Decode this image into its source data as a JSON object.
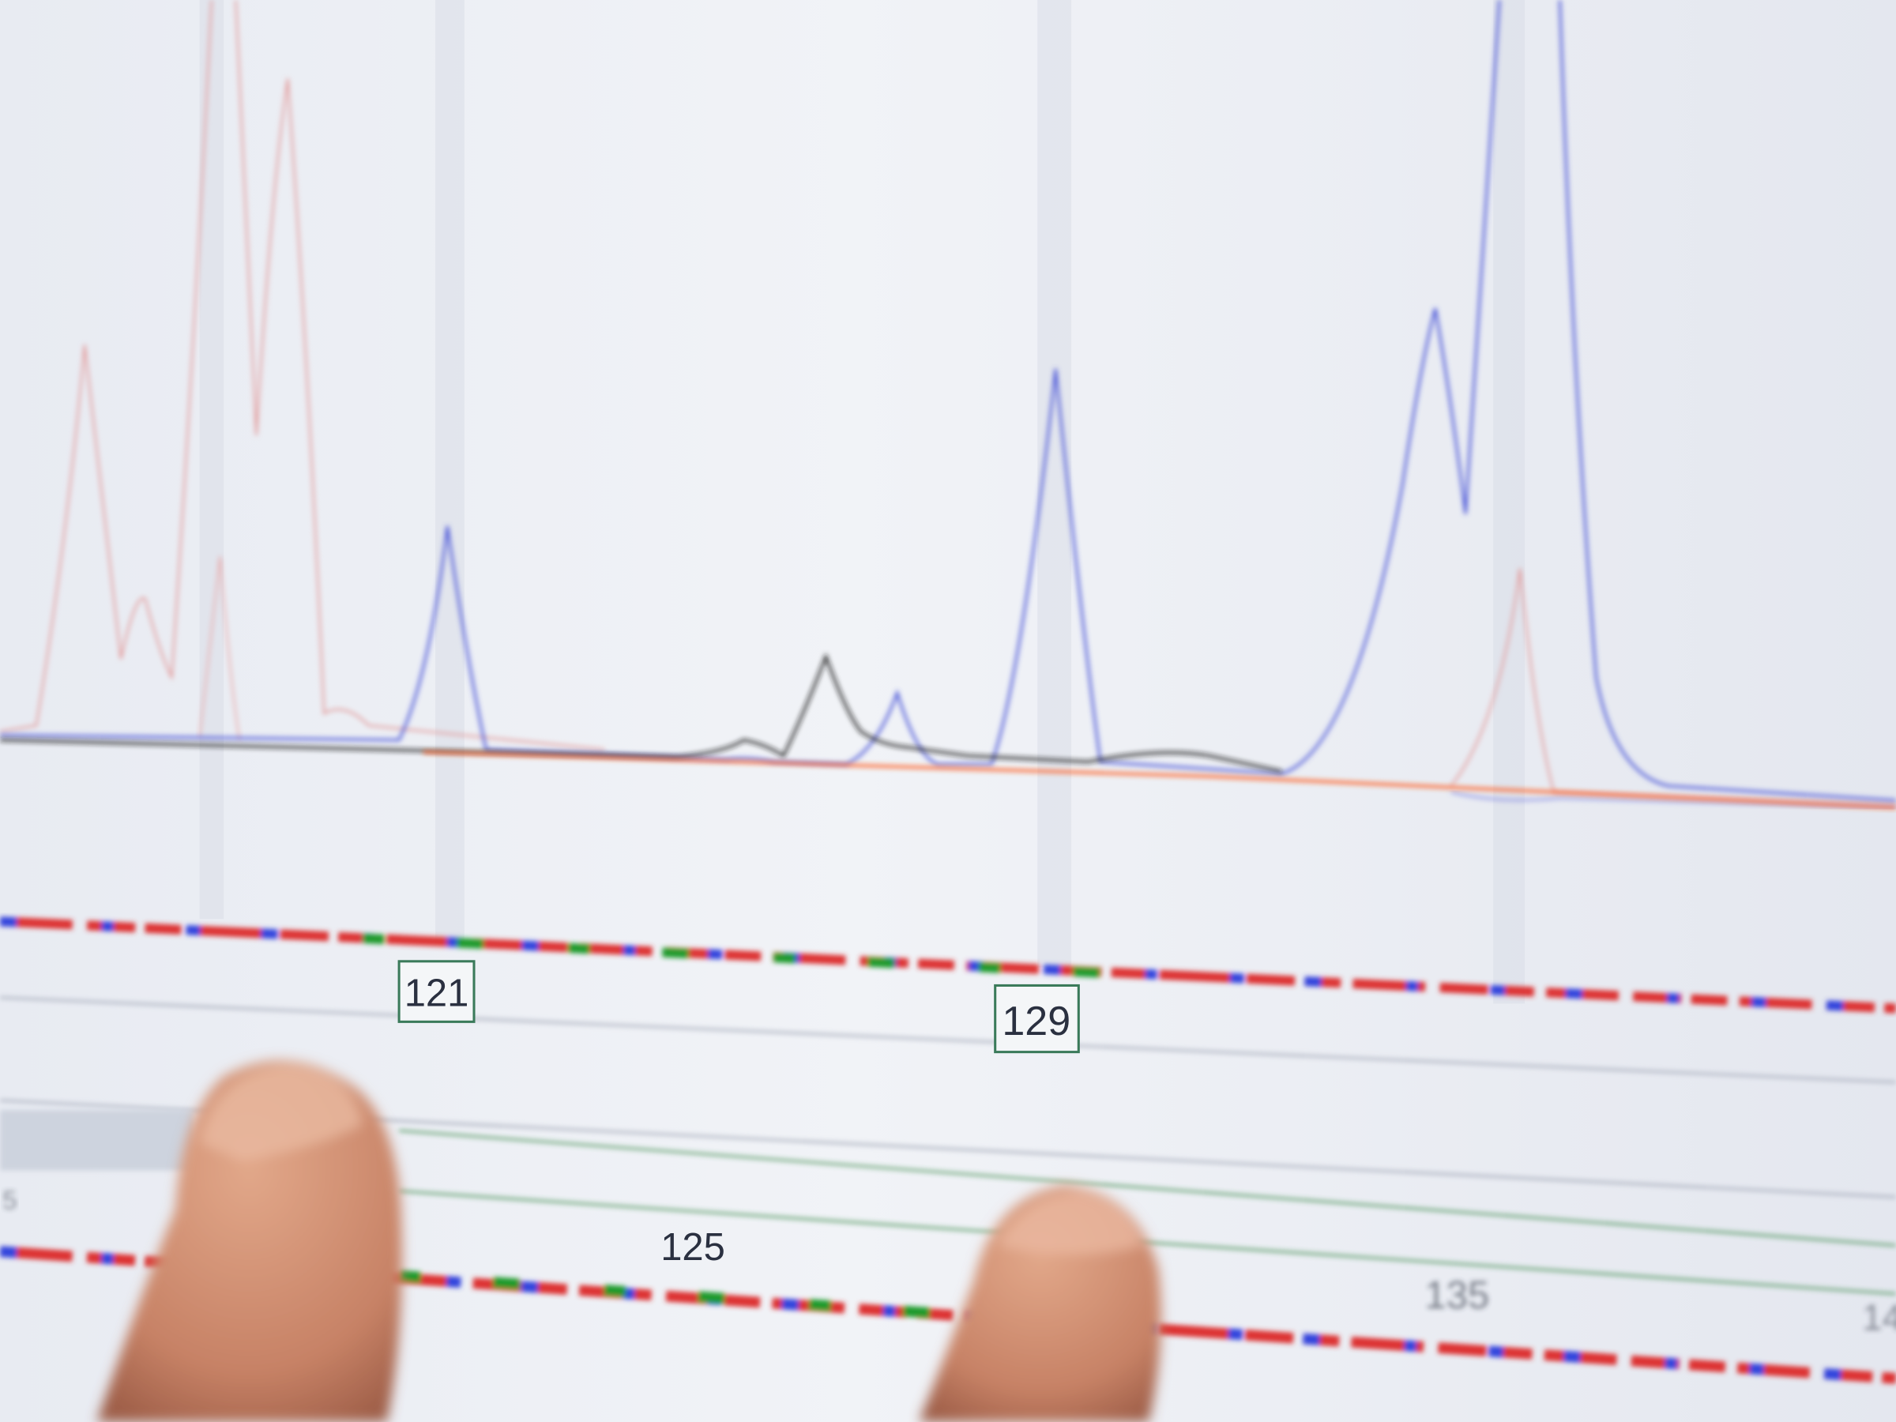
{
  "scene": "photo of a monitor showing a DNA fragment analysis electropherogram, two fingertips pointing at the screen",
  "trace_colors": {
    "blue": "#4a55d8",
    "black": "#1a1a1a",
    "red": "#e07a7a",
    "orange": "#ff5a1a",
    "green": "#1a8a2a"
  },
  "allele_calls": [
    {
      "label": "121"
    },
    {
      "label": "129"
    }
  ],
  "size_ticks": [
    {
      "label": "125"
    },
    {
      "label": "135"
    },
    {
      "label": "14"
    }
  ],
  "sample_label": "",
  "left_tick": "5"
}
